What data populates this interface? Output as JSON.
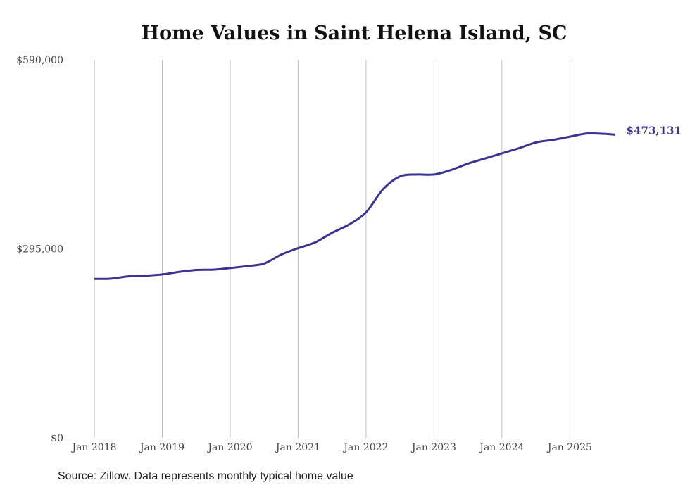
{
  "chart_data": {
    "type": "line",
    "title": "Home Values in Saint Helena Island, SC",
    "source": "Source: Zillow. Data represents monthly typical home value",
    "xlabel": "",
    "ylabel": "",
    "ylim": [
      0,
      590000
    ],
    "yticks": [
      0,
      295000,
      590000
    ],
    "ytick_labels": [
      "$0",
      "$295,000",
      "$590,000"
    ],
    "xtick_labels": [
      "Jan 2018",
      "Jan 2019",
      "Jan 2020",
      "Jan 2021",
      "Jan 2022",
      "Jan 2023",
      "Jan 2024",
      "Jan 2025"
    ],
    "x_unit": "months since Jan 2018",
    "grid": "vertical",
    "line_color": "#3a3394",
    "end_label": "$473,131",
    "series": [
      {
        "name": "Typical home value",
        "x": [
          0,
          3,
          6,
          9,
          12,
          15,
          18,
          21,
          24,
          27,
          30,
          33,
          36,
          39,
          42,
          45,
          48,
          51,
          54,
          57,
          60,
          63,
          66,
          69,
          72,
          75,
          78,
          81,
          84,
          87,
          90,
          92
        ],
        "values": [
          248000,
          248500,
          252000,
          253000,
          255000,
          259000,
          262000,
          262500,
          265000,
          268000,
          272000,
          286000,
          296000,
          305000,
          320000,
          333000,
          352000,
          388000,
          408000,
          411000,
          411000,
          418000,
          428000,
          436000,
          444000,
          452000,
          461000,
          465000,
          470000,
          475000,
          474500,
          473131
        ]
      }
    ]
  }
}
